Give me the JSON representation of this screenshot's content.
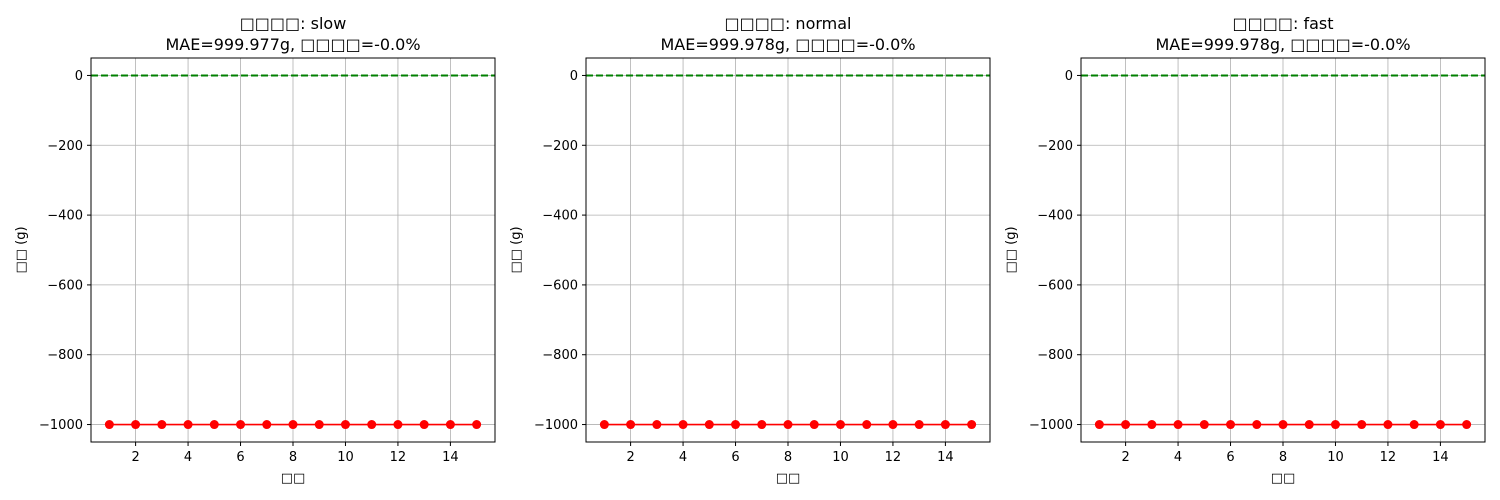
{
  "chart_data": [
    {
      "type": "line",
      "title_line1": "□□□□: slow",
      "title_line2": "MAE=999.977g, □□□□=-0.0%",
      "xlabel": "□□",
      "ylabel": "□□ (g)",
      "xlim": [
        0.3,
        15.7
      ],
      "ylim": [
        -1050,
        50
      ],
      "xticks": [
        2,
        4,
        6,
        8,
        10,
        12,
        14
      ],
      "yticks": [
        0,
        -200,
        -400,
        -600,
        -800,
        -1000
      ],
      "ytick_labels": [
        "0",
        "−200",
        "−400",
        "−600",
        "−800",
        "−1000"
      ],
      "grid": true,
      "series": [
        {
          "style": "line-marker",
          "color": "#ff0000",
          "x": [
            1,
            2,
            3,
            4,
            5,
            6,
            7,
            8,
            9,
            10,
            11,
            12,
            13,
            14,
            15
          ],
          "y": [
            -1000,
            -1000,
            -1000,
            -1000,
            -1000,
            -1000,
            -1000,
            -1000,
            -1000,
            -1000,
            -1000,
            -1000,
            -1000,
            -1000,
            -1000
          ]
        },
        {
          "style": "dashed",
          "color": "#008000",
          "x": [
            0.3,
            15.7
          ],
          "y": [
            0,
            0
          ]
        }
      ]
    },
    {
      "type": "line",
      "title_line1": "□□□□: normal",
      "title_line2": "MAE=999.978g, □□□□=-0.0%",
      "xlabel": "□□",
      "ylabel": "□□ (g)",
      "xlim": [
        0.3,
        15.7
      ],
      "ylim": [
        -1050,
        50
      ],
      "xticks": [
        2,
        4,
        6,
        8,
        10,
        12,
        14
      ],
      "yticks": [
        0,
        -200,
        -400,
        -600,
        -800,
        -1000
      ],
      "ytick_labels": [
        "0",
        "−200",
        "−400",
        "−600",
        "−800",
        "−1000"
      ],
      "grid": true,
      "series": [
        {
          "style": "line-marker",
          "color": "#ff0000",
          "x": [
            1,
            2,
            3,
            4,
            5,
            6,
            7,
            8,
            9,
            10,
            11,
            12,
            13,
            14,
            15
          ],
          "y": [
            -1000,
            -1000,
            -1000,
            -1000,
            -1000,
            -1000,
            -1000,
            -1000,
            -1000,
            -1000,
            -1000,
            -1000,
            -1000,
            -1000,
            -1000
          ]
        },
        {
          "style": "dashed",
          "color": "#008000",
          "x": [
            0.3,
            15.7
          ],
          "y": [
            0,
            0
          ]
        }
      ]
    },
    {
      "type": "line",
      "title_line1": "□□□□: fast",
      "title_line2": "MAE=999.978g, □□□□=-0.0%",
      "xlabel": "□□",
      "ylabel": "□□ (g)",
      "xlim": [
        0.3,
        15.7
      ],
      "ylim": [
        -1050,
        50
      ],
      "xticks": [
        2,
        4,
        6,
        8,
        10,
        12,
        14
      ],
      "yticks": [
        0,
        -200,
        -400,
        -600,
        -800,
        -1000
      ],
      "ytick_labels": [
        "0",
        "−200",
        "−400",
        "−600",
        "−800",
        "−1000"
      ],
      "grid": true,
      "series": [
        {
          "style": "line-marker",
          "color": "#ff0000",
          "x": [
            1,
            2,
            3,
            4,
            5,
            6,
            7,
            8,
            9,
            10,
            11,
            12,
            13,
            14,
            15
          ],
          "y": [
            -1000,
            -1000,
            -1000,
            -1000,
            -1000,
            -1000,
            -1000,
            -1000,
            -1000,
            -1000,
            -1000,
            -1000,
            -1000,
            -1000,
            -1000
          ]
        },
        {
          "style": "dashed",
          "color": "#008000",
          "x": [
            0.3,
            15.7
          ],
          "y": [
            0,
            0
          ]
        }
      ]
    }
  ]
}
